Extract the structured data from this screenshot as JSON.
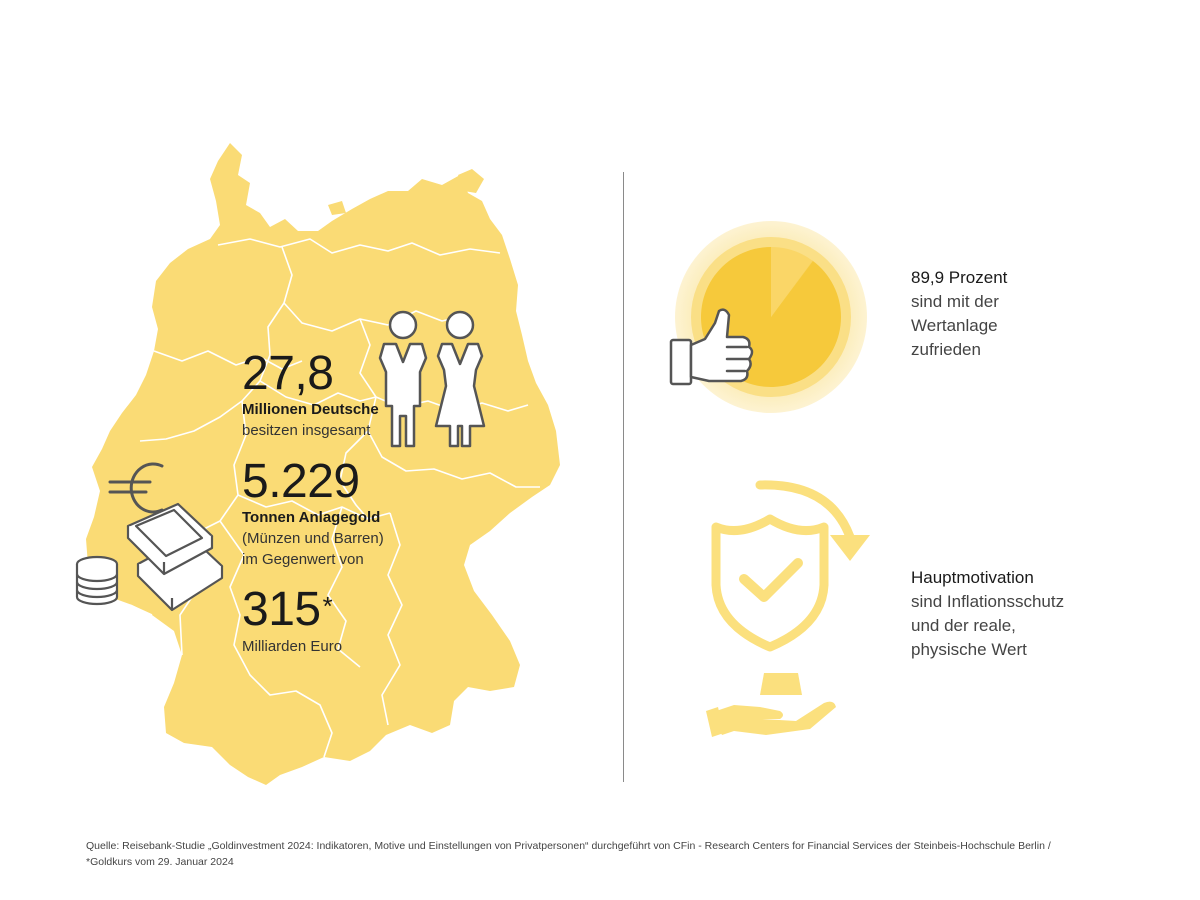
{
  "stats": [
    {
      "value": "27,8",
      "title": "Millionen Deutsche",
      "lines": [
        "besitzen insgesamt"
      ]
    },
    {
      "value": "5.229",
      "title": "Tonnen Anlagegold",
      "lines": [
        "(Münzen und Barren)",
        "im Gegenwert von"
      ]
    },
    {
      "value": "315",
      "suffix": "*",
      "lines": [
        "Milliarden Euro"
      ]
    }
  ],
  "satisfaction": {
    "title": "89,9 Prozent",
    "lines": [
      "sind mit der",
      "Wertanlage",
      "zufrieden"
    ],
    "share": 0.899
  },
  "motivation": {
    "title": "Hauptmotivation",
    "lines": [
      "sind Inflationsschutz",
      "und der reale,",
      "physische Wert"
    ]
  },
  "footer": {
    "line1": "Quelle: Reisebank-Studie „Goldinvestment 2024: Indikatoren, Motive und Einstellungen von Privatpersonen“ durchgeführt von CFin - Research Centers for Financial Services der Steinbeis-Hochschule Berlin /",
    "line2": "*Goldkurs vom 29. Januar 2024"
  },
  "colors": {
    "map_yellow": "#fadb75",
    "pie_yellow": "#f6c93b",
    "pie_light": "#fbe7a4",
    "icon_yellow": "#fbe07e",
    "outline": "#555555",
    "divider": "#8a8a8a"
  },
  "icons": [
    "germany-map",
    "man-icon",
    "woman-icon",
    "euro-icon",
    "gold-bars-icon",
    "coin-stack-icon",
    "thumbs-up-icon",
    "pie-chart-icon",
    "shield-check-icon",
    "arrow-icon",
    "hand-icon",
    "gold-bar-icon"
  ]
}
